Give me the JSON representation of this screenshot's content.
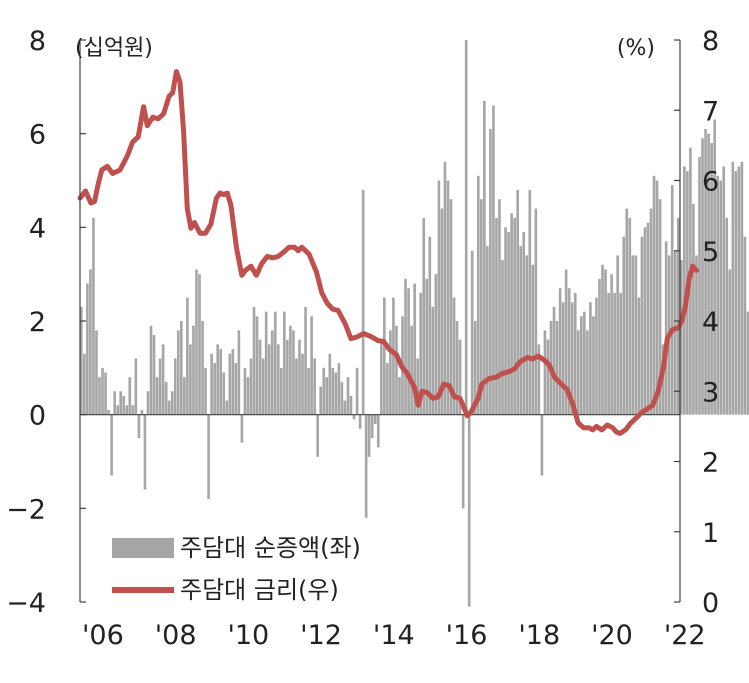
{
  "chart_data": {
    "type": "bar+line",
    "title": "",
    "left_axis": {
      "unit": "(십억원)",
      "ylim": [
        -4,
        8
      ],
      "ticks": [
        "8",
        "6",
        "4",
        "2",
        "0",
        "−2",
        "−4"
      ],
      "tick_values": [
        8,
        6,
        4,
        2,
        0,
        -2,
        -4
      ]
    },
    "right_axis": {
      "unit": "(%)",
      "ylim": [
        0,
        8
      ],
      "ticks": [
        "8",
        "7",
        "6",
        "5",
        "4",
        "3",
        "2",
        "1",
        "0"
      ],
      "tick_values": [
        8,
        7,
        6,
        5,
        4,
        3,
        2,
        1,
        0
      ]
    },
    "x_axis": {
      "range": [
        2006.0,
        2022.5
      ],
      "ticks": [
        "'06",
        "'08",
        "'10",
        "'12",
        "'14",
        "'16",
        "'18",
        "'20",
        "'22"
      ],
      "tick_values": [
        2006,
        2008,
        2010,
        2012,
        2014,
        2016,
        2018,
        2020,
        2022
      ]
    },
    "legend": {
      "placement": "bottom-left",
      "entries": [
        "주담대 순증액(좌)",
        "주담대 금리(우)"
      ]
    },
    "colors": {
      "bars": "#a6a6a6",
      "line": "#c0504d",
      "axis": "#404040"
    },
    "series": [
      {
        "name": "주담대 순증액(좌)",
        "axis": "left",
        "type": "bar",
        "x_start": 2006.0,
        "step_months": 1,
        "values": [
          2.3,
          1.3,
          2.8,
          3.1,
          4.2,
          1.8,
          0.8,
          1.0,
          0.9,
          0.1,
          -1.3,
          0.5,
          0.2,
          0.5,
          0.4,
          0.2,
          0.8,
          0.2,
          1.2,
          -0.5,
          0.1,
          -1.6,
          0.5,
          1.9,
          1.7,
          0.8,
          1.2,
          1.5,
          0.7,
          0.3,
          0.5,
          1.2,
          1.8,
          2.0,
          0.8,
          2.5,
          1.5,
          1.9,
          3.1,
          3.0,
          2.0,
          1.0,
          -1.8,
          1.3,
          1.1,
          1.5,
          1.4,
          0.9,
          0.3,
          1.3,
          1.4,
          1.1,
          1.8,
          -0.6,
          1.0,
          0.8,
          1.2,
          2.3,
          2.1,
          1.6,
          1.2,
          2.2,
          1.5,
          1.8,
          2.2,
          1.5,
          1.0,
          2.2,
          1.6,
          1.9,
          1.8,
          1.2,
          1.6,
          1.3,
          2.3,
          1.0,
          2.1,
          1.2,
          -0.9,
          0.6,
          1.0,
          0.8,
          1.3,
          1.0,
          0.9,
          1.1,
          0.7,
          0.3,
          0.8,
          0.4,
          -0.1,
          1.0,
          -0.3,
          4.8,
          -2.2,
          -0.9,
          -0.5,
          -0.2,
          -0.7,
          1.6,
          2.5,
          1.1,
          1.8,
          2.5,
          1.9,
          0.8,
          2.1,
          2.9,
          2.7,
          1.9,
          2.8,
          1.2,
          2.6,
          4.2,
          2.9,
          3.8,
          2.3,
          3.0,
          5.0,
          4.4,
          5.4,
          5.0,
          4.6,
          2.5,
          2.0,
          1.6,
          -2.0,
          8.0,
          -4.1,
          3.5,
          2.0,
          5.1,
          4.6,
          6.7,
          3.6,
          6.1,
          6.6,
          4.2,
          4.6,
          3.3,
          4.0,
          3.9,
          4.3,
          4.2,
          4.8,
          3.6,
          3.9,
          3.4,
          4.8,
          3.2,
          4.4,
          1.5,
          -1.3,
          1.8,
          1.6,
          2.0,
          2.3,
          2.0,
          2.7,
          2.4,
          3.1,
          2.7,
          2.4,
          2.6,
          1.8,
          2.1,
          2.2,
          1.8,
          2.4,
          2.1,
          2.5,
          2.9,
          3.2,
          3.1,
          2.6,
          3.0,
          2.6,
          3.4,
          2.6,
          3.8,
          4.4,
          4.2,
          3.4,
          3.4,
          2.5,
          3.8,
          4.0,
          4.1,
          4.4,
          5.1,
          5.0,
          4.6,
          1.5,
          3.7,
          3.4,
          4.9,
          3.5,
          4.2,
          3.3,
          5.3,
          5.2,
          5.7,
          4.5,
          3.4,
          5.5,
          5.9,
          6.1,
          6.0,
          5.8,
          6.3,
          5.1,
          5.0,
          5.3,
          4.2,
          3.1,
          5.4,
          5.2,
          5.3,
          5.4,
          3.8,
          2.2,
          1.5,
          1.0,
          0.3,
          1.1,
          0.5,
          0.9,
          0.8,
          0.9,
          1.4,
          1.6,
          1.3
        ]
      },
      {
        "name": "주담대 금리(우)",
        "axis": "right",
        "type": "line",
        "points": [
          [
            2006.0,
            5.75
          ],
          [
            2006.15,
            5.85
          ],
          [
            2006.3,
            5.68
          ],
          [
            2006.4,
            5.7
          ],
          [
            2006.5,
            5.95
          ],
          [
            2006.6,
            6.15
          ],
          [
            2006.75,
            6.2
          ],
          [
            2006.9,
            6.1
          ],
          [
            2007.1,
            6.15
          ],
          [
            2007.3,
            6.35
          ],
          [
            2007.45,
            6.55
          ],
          [
            2007.6,
            6.62
          ],
          [
            2007.75,
            7.05
          ],
          [
            2007.85,
            6.78
          ],
          [
            2008.0,
            6.9
          ],
          [
            2008.15,
            6.88
          ],
          [
            2008.3,
            6.95
          ],
          [
            2008.45,
            7.2
          ],
          [
            2008.55,
            7.25
          ],
          [
            2008.65,
            7.55
          ],
          [
            2008.75,
            7.4
          ],
          [
            2008.85,
            6.7
          ],
          [
            2008.95,
            5.6
          ],
          [
            2009.05,
            5.32
          ],
          [
            2009.15,
            5.4
          ],
          [
            2009.3,
            5.25
          ],
          [
            2009.45,
            5.25
          ],
          [
            2009.6,
            5.38
          ],
          [
            2009.75,
            5.75
          ],
          [
            2009.85,
            5.82
          ],
          [
            2009.95,
            5.8
          ],
          [
            2010.05,
            5.82
          ],
          [
            2010.15,
            5.65
          ],
          [
            2010.3,
            5.05
          ],
          [
            2010.45,
            4.65
          ],
          [
            2010.55,
            4.72
          ],
          [
            2010.7,
            4.78
          ],
          [
            2010.85,
            4.65
          ],
          [
            2011.0,
            4.82
          ],
          [
            2011.15,
            4.92
          ],
          [
            2011.3,
            4.9
          ],
          [
            2011.45,
            4.92
          ],
          [
            2011.6,
            4.98
          ],
          [
            2011.75,
            5.05
          ],
          [
            2011.9,
            5.05
          ],
          [
            2012.0,
            5.0
          ],
          [
            2012.1,
            5.05
          ],
          [
            2012.3,
            4.95
          ],
          [
            2012.5,
            4.7
          ],
          [
            2012.65,
            4.4
          ],
          [
            2012.8,
            4.25
          ],
          [
            2012.95,
            4.17
          ],
          [
            2013.1,
            4.15
          ],
          [
            2013.3,
            3.95
          ],
          [
            2013.45,
            3.75
          ],
          [
            2013.6,
            3.77
          ],
          [
            2013.8,
            3.82
          ],
          [
            2014.0,
            3.78
          ],
          [
            2014.2,
            3.72
          ],
          [
            2014.35,
            3.71
          ],
          [
            2014.5,
            3.6
          ],
          [
            2014.7,
            3.52
          ],
          [
            2014.85,
            3.35
          ],
          [
            2015.0,
            3.25
          ],
          [
            2015.2,
            3.05
          ],
          [
            2015.3,
            2.8
          ],
          [
            2015.4,
            3.0
          ],
          [
            2015.55,
            2.98
          ],
          [
            2015.7,
            2.9
          ],
          [
            2015.85,
            2.92
          ],
          [
            2016.0,
            3.1
          ],
          [
            2016.15,
            3.08
          ],
          [
            2016.3,
            2.92
          ],
          [
            2016.45,
            2.9
          ],
          [
            2016.55,
            2.78
          ],
          [
            2016.65,
            2.65
          ],
          [
            2016.75,
            2.7
          ],
          [
            2016.85,
            2.8
          ],
          [
            2016.95,
            2.9
          ],
          [
            2017.05,
            3.1
          ],
          [
            2017.25,
            3.18
          ],
          [
            2017.45,
            3.2
          ],
          [
            2017.6,
            3.25
          ],
          [
            2017.8,
            3.28
          ],
          [
            2017.95,
            3.32
          ],
          [
            2018.1,
            3.42
          ],
          [
            2018.3,
            3.48
          ],
          [
            2018.45,
            3.46
          ],
          [
            2018.6,
            3.5
          ],
          [
            2018.75,
            3.45
          ],
          [
            2018.9,
            3.38
          ],
          [
            2019.05,
            3.2
          ],
          [
            2019.2,
            3.12
          ],
          [
            2019.4,
            3.02
          ],
          [
            2019.55,
            2.82
          ],
          [
            2019.7,
            2.55
          ],
          [
            2019.85,
            2.48
          ],
          [
            2020.0,
            2.48
          ],
          [
            2020.1,
            2.45
          ],
          [
            2020.2,
            2.5
          ],
          [
            2020.35,
            2.45
          ],
          [
            2020.5,
            2.52
          ],
          [
            2020.65,
            2.48
          ],
          [
            2020.75,
            2.42
          ],
          [
            2020.85,
            2.4
          ],
          [
            2021.0,
            2.45
          ],
          [
            2021.15,
            2.55
          ],
          [
            2021.3,
            2.62
          ],
          [
            2021.45,
            2.7
          ],
          [
            2021.6,
            2.75
          ],
          [
            2021.75,
            2.8
          ],
          [
            2021.9,
            3.0
          ],
          [
            2022.05,
            3.35
          ],
          [
            2022.15,
            3.75
          ],
          [
            2022.3,
            3.88
          ],
          [
            2022.45,
            3.9
          ],
          [
            2022.55,
            4.0
          ],
          [
            2022.65,
            4.22
          ],
          [
            2022.75,
            4.6
          ],
          [
            2022.85,
            4.78
          ],
          [
            2022.95,
            4.72
          ]
        ]
      }
    ]
  }
}
